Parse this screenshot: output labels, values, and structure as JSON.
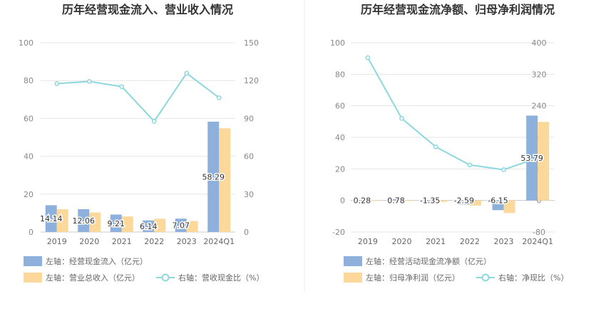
{
  "chart_data": [
    {
      "type": "bar",
      "title": "历年经营现金流入、营业收入情况",
      "categories": [
        "2019",
        "2020",
        "2021",
        "2022",
        "2023",
        "2024Q1"
      ],
      "y_left": {
        "min": 0,
        "max": 100,
        "ticks": [
          "0",
          "20",
          "40",
          "60",
          "80",
          "100"
        ]
      },
      "y_right": {
        "min": 0,
        "max": 150,
        "ticks": [
          "0",
          "30",
          "60",
          "90",
          "120",
          "150"
        ]
      },
      "grid": true,
      "legend_position": "bottom-left",
      "series": [
        {
          "name": "左轴：经营现金流入（亿元）",
          "kind": "bar",
          "axis": "left",
          "color": "#8eb0dc",
          "values": [
            14.14,
            12.06,
            9.21,
            6.14,
            7.07,
            58.29
          ],
          "labels": [
            "14.14",
            "12.06",
            "9.21",
            "6.14",
            "7.07",
            "58.29"
          ]
        },
        {
          "name": "左轴：营业总收入（亿元）",
          "kind": "bar",
          "axis": "left",
          "color": "#fcd89b",
          "values": [
            12.0,
            10.3,
            8.2,
            7.0,
            5.8,
            54.8
          ]
        },
        {
          "name": "右轴：营收现金比（%）",
          "kind": "line",
          "axis": "right",
          "color": "#8dd7de",
          "values": [
            117.6,
            119.3,
            115.2,
            87.7,
            125.8,
            106.4
          ]
        }
      ]
    },
    {
      "type": "bar",
      "title": "历年经营现金流净额、归母净利润情况",
      "categories": [
        "2019",
        "2020",
        "2021",
        "2022",
        "2023",
        "2024Q1"
      ],
      "y_left": {
        "min": -20,
        "max": 100,
        "ticks": [
          "-20",
          "0",
          "20",
          "40",
          "60",
          "80",
          "100"
        ]
      },
      "y_right": {
        "min": -80,
        "max": 400,
        "ticks": [
          "-80",
          "0",
          "80",
          "160",
          "240",
          "320",
          "400"
        ]
      },
      "grid": true,
      "legend_position": "bottom-left",
      "series": [
        {
          "name": "左轴：经营活动现金流净额（亿元）",
          "kind": "bar",
          "axis": "left",
          "color": "#8eb0dc",
          "values": [
            0.28,
            0.78,
            -1.35,
            -2.59,
            -6.15,
            53.79
          ],
          "labels": [
            "0.28",
            "0.78",
            "-1.35",
            "-2.59",
            "-6.15",
            "53.79"
          ]
        },
        {
          "name": "左轴：归母净利润（亿元）",
          "kind": "bar",
          "axis": "left",
          "color": "#fcd89b",
          "values": [
            0.2,
            0.15,
            -0.9,
            -3.2,
            -8.0,
            49.8
          ]
        },
        {
          "name": "右轴：净现比（%）",
          "kind": "line",
          "axis": "right",
          "color": "#8dd7de",
          "values": [
            362,
            208,
            136,
            90,
            78,
            108
          ]
        }
      ]
    }
  ]
}
